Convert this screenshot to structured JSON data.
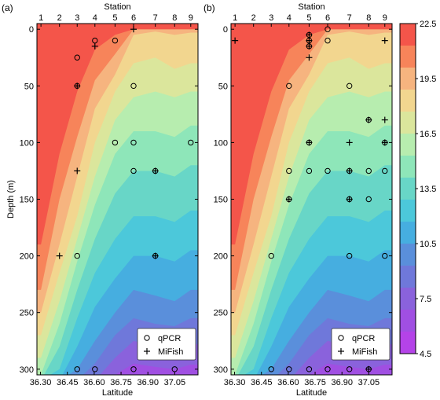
{
  "figure": {
    "panel_labels": [
      "(a)",
      "(b)"
    ],
    "station_axis_label": "Station",
    "latitude_axis_label": "Latitude",
    "depth_axis_label": "Depth (m)",
    "legend": {
      "qpcr_label": "qPCR",
      "mifish_label": "MiFish"
    },
    "colorbar": {
      "levels": [
        "22.5",
        "19.5",
        "16.5",
        "13.5",
        "10.5",
        "7.5",
        "4.5"
      ],
      "band_colors": [
        "#f4554a",
        "#f7845a",
        "#f6b47f",
        "#f2d68f",
        "#dbe69c",
        "#b7edaf",
        "#8ee6b9",
        "#68d6c7",
        "#4cc8da",
        "#46aee0",
        "#5a8fdb",
        "#6f78da",
        "#8a62dc",
        "#a04fe2",
        "#b443e8"
      ]
    }
  },
  "chart_data": [
    {
      "type": "heatmap",
      "panel": "(a)",
      "xlabel": "Latitude",
      "x2label": "Station",
      "ylabel": "Depth (m)",
      "xlim": [
        36.28,
        37.18
      ],
      "ylim": [
        305,
        -5
      ],
      "latitude_ticks": [
        "36.30",
        "36.45",
        "36.60",
        "36.75",
        "36.90",
        "37.05"
      ],
      "station_ticks": [
        "1",
        "2",
        "3",
        "4",
        "5",
        "6",
        "7",
        "8",
        "9"
      ],
      "depth_ticks": [
        "0",
        "50",
        "100",
        "150",
        "200",
        "250",
        "300"
      ],
      "qpcr_samples": [
        {
          "station": 4,
          "depth": 10
        },
        {
          "station": 5,
          "depth": 10
        },
        {
          "station": 3,
          "depth": 25
        },
        {
          "station": 3,
          "depth": 50
        },
        {
          "station": 6,
          "depth": 50
        },
        {
          "station": 5,
          "depth": 100
        },
        {
          "station": 6,
          "depth": 100
        },
        {
          "station": 9,
          "depth": 100
        },
        {
          "station": 6,
          "depth": 125
        },
        {
          "station": 7,
          "depth": 125
        },
        {
          "station": 3,
          "depth": 200
        },
        {
          "station": 7,
          "depth": 200
        },
        {
          "station": 3,
          "depth": 300
        },
        {
          "station": 4,
          "depth": 300
        },
        {
          "station": 6,
          "depth": 300
        },
        {
          "station": 8,
          "depth": 300
        }
      ],
      "mifish_samples": [
        {
          "station": 6,
          "depth": 0
        },
        {
          "station": 4,
          "depth": 15
        },
        {
          "station": 3,
          "depth": 50
        },
        {
          "station": 3,
          "depth": 125
        },
        {
          "station": 7,
          "depth": 125
        },
        {
          "station": 2,
          "depth": 200
        },
        {
          "station": 7,
          "depth": 200
        }
      ],
      "colorbar_range": [
        4.5,
        22.5
      ]
    },
    {
      "type": "heatmap",
      "panel": "(b)",
      "xlabel": "Latitude",
      "x2label": "Station",
      "ylabel": "",
      "xlim": [
        36.28,
        37.18
      ],
      "ylim": [
        305,
        -5
      ],
      "latitude_ticks": [
        "36.30",
        "36.45",
        "36.60",
        "36.75",
        "36.90",
        "37.05"
      ],
      "station_ticks": [
        "1",
        "2",
        "3",
        "4",
        "5",
        "6",
        "7",
        "8",
        "9"
      ],
      "depth_ticks": [
        "0",
        "50",
        "100",
        "150",
        "200",
        "250",
        "300"
      ],
      "qpcr_samples": [
        {
          "station": 5,
          "depth": 5
        },
        {
          "station": 5,
          "depth": 10
        },
        {
          "station": 5,
          "depth": 15
        },
        {
          "station": 6,
          "depth": 0
        },
        {
          "station": 6,
          "depth": 10
        },
        {
          "station": 4,
          "depth": 50
        },
        {
          "station": 7,
          "depth": 50
        },
        {
          "station": 5,
          "depth": 100
        },
        {
          "station": 9,
          "depth": 100
        },
        {
          "station": 8,
          "depth": 80
        },
        {
          "station": 4,
          "depth": 125
        },
        {
          "station": 5,
          "depth": 125
        },
        {
          "station": 6,
          "depth": 125
        },
        {
          "station": 7,
          "depth": 125
        },
        {
          "station": 8,
          "depth": 125
        },
        {
          "station": 9,
          "depth": 125
        },
        {
          "station": 4,
          "depth": 150
        },
        {
          "station": 7,
          "depth": 150
        },
        {
          "station": 8,
          "depth": 150
        },
        {
          "station": 3,
          "depth": 200
        },
        {
          "station": 7,
          "depth": 200
        },
        {
          "station": 9,
          "depth": 200
        },
        {
          "station": 3,
          "depth": 300
        },
        {
          "station": 4,
          "depth": 300
        },
        {
          "station": 5,
          "depth": 300
        },
        {
          "station": 6,
          "depth": 300
        },
        {
          "station": 7,
          "depth": 300
        },
        {
          "station": 8,
          "depth": 300
        }
      ],
      "mifish_samples": [
        {
          "station": 1,
          "depth": 10
        },
        {
          "station": 5,
          "depth": 5
        },
        {
          "station": 5,
          "depth": 10
        },
        {
          "station": 5,
          "depth": 15
        },
        {
          "station": 5,
          "depth": 25
        },
        {
          "station": 9,
          "depth": 10
        },
        {
          "station": 8,
          "depth": 80
        },
        {
          "station": 9,
          "depth": 80
        },
        {
          "station": 5,
          "depth": 100
        },
        {
          "station": 7,
          "depth": 100
        },
        {
          "station": 9,
          "depth": 100
        },
        {
          "station": 7,
          "depth": 125
        },
        {
          "station": 4,
          "depth": 150
        },
        {
          "station": 7,
          "depth": 150
        },
        {
          "station": 8,
          "depth": 300
        }
      ],
      "colorbar_range": [
        4.5,
        22.5
      ]
    }
  ]
}
